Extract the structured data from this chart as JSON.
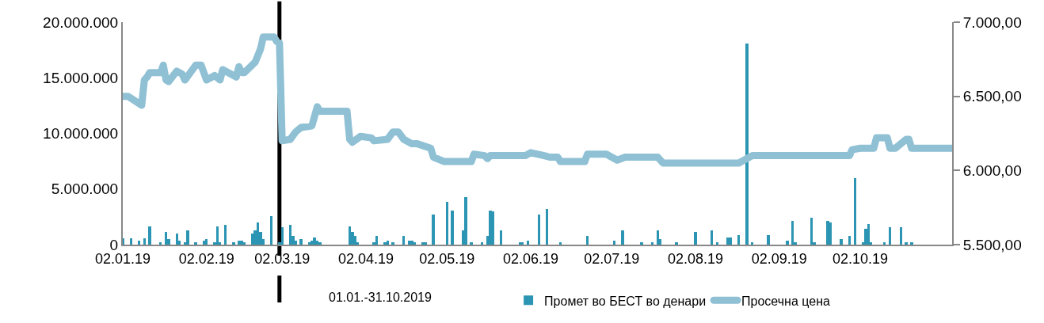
{
  "chart_data": {
    "type": "bar",
    "xlim": [
      "2019-01-02",
      "2019-11-05"
    ],
    "xticks": [
      {
        "value": "2019-01-02",
        "label": "02.01.19"
      },
      {
        "value": "2019-02-02",
        "label": "02.02.19"
      },
      {
        "value": "2019-03-02",
        "label": "02.03.19"
      },
      {
        "value": "2019-04-02",
        "label": "02.04.19"
      },
      {
        "value": "2019-05-02",
        "label": "02.05.19"
      },
      {
        "value": "2019-06-02",
        "label": "02.06.19"
      },
      {
        "value": "2019-07-02",
        "label": "02.07.19"
      },
      {
        "value": "2019-08-02",
        "label": "02.08.19"
      },
      {
        "value": "2019-09-02",
        "label": "02.09.19"
      },
      {
        "value": "2019-10-02",
        "label": "02.10.19"
      }
    ],
    "ylim": [
      0,
      20000000
    ],
    "yticks": [
      {
        "value": 0,
        "label": "0"
      },
      {
        "value": 5000000,
        "label": "5.000.000"
      },
      {
        "value": 10000000,
        "label": "10.000.000"
      },
      {
        "value": 15000000,
        "label": "15.000.000"
      },
      {
        "value": 20000000,
        "label": "20.000.000"
      }
    ],
    "y2lim": [
      5500,
      7000
    ],
    "y2ticks": [
      {
        "value": 5500,
        "label": "5.500,00"
      },
      {
        "value": 6000,
        "label": "6.000,00"
      },
      {
        "value": 6500,
        "label": "6.500,00"
      },
      {
        "value": 7000,
        "label": "7.000,00"
      }
    ],
    "grid": false,
    "legend": "bottom",
    "line_style": "solid",
    "annotations": [
      "01.01.-31.10.2019"
    ],
    "ref_lines": [
      {
        "axis": "x",
        "value": "2019-03-01",
        "color": "#000000"
      }
    ],
    "series": [
      {
        "name": "Промет во БЕСТ во денари",
        "color": "#2b95b3",
        "x": [
          "2019-01-02",
          "2019-01-05",
          "2019-01-08",
          "2019-01-10",
          "2019-01-12",
          "2019-01-16",
          "2019-01-18",
          "2019-01-19",
          "2019-01-22",
          "2019-01-23",
          "2019-01-25",
          "2019-01-26",
          "2019-01-29",
          "2019-02-01",
          "2019-02-02",
          "2019-02-05",
          "2019-02-06",
          "2019-02-07",
          "2019-02-09",
          "2019-02-12",
          "2019-02-14",
          "2019-02-15",
          "2019-02-16",
          "2019-02-19",
          "2019-02-20",
          "2019-02-21",
          "2019-02-22",
          "2019-02-23",
          "2019-02-26",
          "2019-03-01",
          "2019-03-02",
          "2019-03-05",
          "2019-03-06",
          "2019-03-07",
          "2019-03-09",
          "2019-03-12",
          "2019-03-13",
          "2019-03-14",
          "2019-03-15",
          "2019-03-16",
          "2019-03-27",
          "2019-03-28",
          "2019-03-29",
          "2019-03-30",
          "2019-04-05",
          "2019-04-06",
          "2019-04-09",
          "2019-04-10",
          "2019-04-12",
          "2019-04-16",
          "2019-04-18",
          "2019-04-19",
          "2019-04-20",
          "2019-04-23",
          "2019-04-24",
          "2019-04-27",
          "2019-05-02",
          "2019-05-04",
          "2019-05-08",
          "2019-05-09",
          "2019-05-11",
          "2019-05-15",
          "2019-05-17",
          "2019-05-18",
          "2019-05-19",
          "2019-05-22",
          "2019-05-29",
          "2019-05-30",
          "2019-06-01",
          "2019-06-05",
          "2019-06-08",
          "2019-06-13",
          "2019-06-23",
          "2019-07-03",
          "2019-07-06",
          "2019-07-13",
          "2019-07-17",
          "2019-07-19",
          "2019-07-20",
          "2019-07-26",
          "2019-08-02",
          "2019-08-08",
          "2019-08-10",
          "2019-08-14",
          "2019-08-15",
          "2019-08-18",
          "2019-08-21",
          "2019-08-23",
          "2019-08-29",
          "2019-09-05",
          "2019-09-07",
          "2019-09-08",
          "2019-09-14",
          "2019-09-15",
          "2019-09-20",
          "2019-09-21",
          "2019-09-25",
          "2019-09-28",
          "2019-09-30",
          "2019-10-03",
          "2019-10-04",
          "2019-10-05",
          "2019-10-06",
          "2019-10-11",
          "2019-10-13",
          "2019-10-17",
          "2019-10-19",
          "2019-10-21"
        ],
        "values": [
          590000,
          590000,
          350000,
          590000,
          1660000,
          240000,
          1140000,
          470000,
          990000,
          350000,
          240000,
          1250000,
          240000,
          350000,
          470000,
          240000,
          1660000,
          240000,
          1800000,
          240000,
          350000,
          350000,
          240000,
          1020000,
          1250000,
          2000000,
          1140000,
          470000,
          2530000,
          240000,
          1540000,
          1800000,
          760000,
          350000,
          470000,
          240000,
          350000,
          620000,
          350000,
          240000,
          1660000,
          1140000,
          760000,
          240000,
          240000,
          760000,
          240000,
          350000,
          240000,
          760000,
          350000,
          350000,
          240000,
          240000,
          240000,
          2670000,
          3860000,
          3050000,
          1300000,
          4260000,
          240000,
          240000,
          760000,
          3050000,
          2960000,
          1280000,
          240000,
          240000,
          350000,
          2670000,
          3190000,
          220000,
          750000,
          350000,
          1280000,
          220000,
          220000,
          1280000,
          490000,
          220000,
          1150000,
          1280000,
          220000,
          620000,
          620000,
          880000,
          18080000,
          220000,
          880000,
          350000,
          2140000,
          220000,
          2410000,
          220000,
          2140000,
          2000000,
          490000,
          750000,
          5960000,
          220000,
          1410000,
          1880000,
          220000,
          220000,
          1550000,
          1550000,
          220000,
          220000
        ]
      },
      {
        "name": "Просечна цена",
        "type": "line",
        "axis": "y2",
        "color": "#8fc0d4",
        "x": [
          "2019-01-02",
          "2019-01-04",
          "2019-01-09",
          "2019-01-10",
          "2019-01-11",
          "2019-01-12",
          "2019-01-16",
          "2019-01-17",
          "2019-01-18",
          "2019-01-19",
          "2019-01-22",
          "2019-01-24",
          "2019-01-25",
          "2019-01-29",
          "2019-01-31",
          "2019-02-02",
          "2019-02-05",
          "2019-02-07",
          "2019-02-08",
          "2019-02-13",
          "2019-02-14",
          "2019-02-15",
          "2019-02-16",
          "2019-02-20",
          "2019-02-22",
          "2019-02-23",
          "2019-02-27",
          "2019-02-28",
          "2019-03-01",
          "2019-03-02",
          "2019-03-05",
          "2019-03-07",
          "2019-03-09",
          "2019-03-13",
          "2019-03-15",
          "2019-03-16",
          "2019-03-26",
          "2019-03-27",
          "2019-03-28",
          "2019-03-31",
          "2019-04-04",
          "2019-04-05",
          "2019-04-10",
          "2019-04-12",
          "2019-04-14",
          "2019-04-16",
          "2019-04-19",
          "2019-04-21",
          "2019-04-26",
          "2019-04-27",
          "2019-05-01",
          "2019-05-11",
          "2019-05-12",
          "2019-05-16",
          "2019-05-17",
          "2019-05-18",
          "2019-05-31",
          "2019-06-02",
          "2019-06-07",
          "2019-06-09",
          "2019-06-12",
          "2019-06-13",
          "2019-06-22",
          "2019-06-23",
          "2019-06-30",
          "2019-07-04",
          "2019-07-07",
          "2019-07-19",
          "2019-07-21",
          "2019-08-18",
          "2019-08-23",
          "2019-09-28",
          "2019-09-29",
          "2019-10-02",
          "2019-10-07",
          "2019-10-08",
          "2019-10-12",
          "2019-10-13",
          "2019-10-15",
          "2019-10-19",
          "2019-10-20",
          "2019-10-21",
          "2019-11-05"
        ],
        "values": [
          6500,
          6500,
          6440,
          6610,
          6630,
          6660,
          6660,
          6710,
          6610,
          6600,
          6670,
          6650,
          6610,
          6710,
          6710,
          6610,
          6640,
          6610,
          6680,
          6630,
          6700,
          6660,
          6660,
          6730,
          6820,
          6900,
          6900,
          6870,
          6860,
          6200,
          6210,
          6260,
          6290,
          6300,
          6430,
          6400,
          6400,
          6210,
          6190,
          6230,
          6220,
          6200,
          6210,
          6260,
          6260,
          6210,
          6180,
          6180,
          6150,
          6090,
          6060,
          6060,
          6110,
          6100,
          6080,
          6100,
          6100,
          6120,
          6100,
          6090,
          6090,
          6060,
          6060,
          6110,
          6110,
          6070,
          6090,
          6090,
          6050,
          6050,
          6100,
          6100,
          6140,
          6150,
          6150,
          6220,
          6220,
          6150,
          6150,
          6210,
          6210,
          6150,
          6150
        ]
      }
    ]
  }
}
